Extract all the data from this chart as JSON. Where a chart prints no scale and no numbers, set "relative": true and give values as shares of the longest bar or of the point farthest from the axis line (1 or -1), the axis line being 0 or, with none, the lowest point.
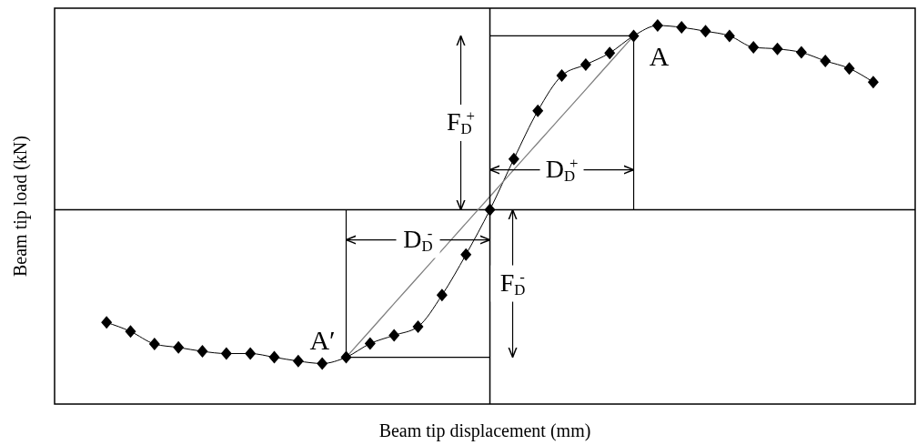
{
  "chart_data": {
    "type": "line",
    "relative": true,
    "xlabel": "Beam tip displacement (mm)",
    "ylabel": "Beam tip load (kN)",
    "categories": [
      null,
      null,
      null,
      null,
      null,
      null,
      null,
      null,
      null,
      null,
      null,
      null,
      null,
      null,
      null,
      null,
      null,
      null,
      null,
      null,
      null,
      null,
      null,
      null,
      null,
      null,
      null,
      null,
      null,
      null,
      null,
      null,
      null
    ],
    "series": [
      {
        "color": "#000000",
        "marker": "diamond",
        "values": [
          -0.611,
          -0.66,
          -0.728,
          -0.747,
          -0.768,
          -0.78,
          -0.78,
          -0.8,
          -0.821,
          -0.834,
          -0.8,
          -0.726,
          -0.681,
          -0.634,
          -0.463,
          -0.243,
          0,
          0.276,
          0.537,
          0.728,
          0.788,
          0.851,
          0.944,
          1,
          0.99,
          0.969,
          0.944,
          0.882,
          0.873,
          0.854,
          0.808,
          0.767,
          0.693
        ]
      },
      {
        "color": "#808080",
        "marker": "none",
        "values": [
          null,
          null,
          null,
          null,
          null,
          null,
          null,
          null,
          null,
          null,
          -0.8,
          -0.655,
          -0.509,
          -0.364,
          -0.219,
          -0.073,
          0.072,
          0.218,
          0.363,
          0.508,
          0.653,
          0.799,
          0.944,
          null,
          null,
          null,
          null,
          null,
          null,
          null,
          null,
          null,
          null
        ]
      }
    ],
    "annotations": [
      "A",
      "A′",
      "F$_{D}$$^{+}$",
      "D$_{D}$$^{+}$",
      "D$_{D}$$^{-}$",
      "F$_{D}$$^{-}$"
    ]
  }
}
